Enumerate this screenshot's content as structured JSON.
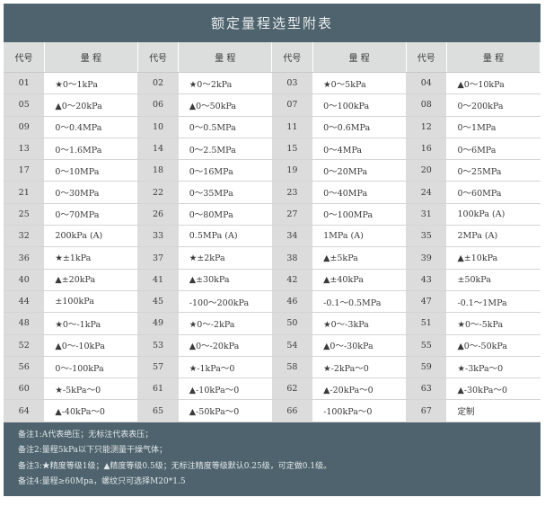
{
  "title": "额定量程选型附表",
  "headers": {
    "code": "代号",
    "range": "量 程"
  },
  "rows": [
    [
      [
        "01",
        "★0～1kPa"
      ],
      [
        "02",
        "★0～2kPa"
      ],
      [
        "03",
        "★0～5kPa"
      ],
      [
        "04",
        "▲0～10kPa"
      ]
    ],
    [
      [
        "05",
        "▲0～20kPa"
      ],
      [
        "06",
        "▲0～50kPa"
      ],
      [
        "07",
        "0～100kPa"
      ],
      [
        "08",
        "0～200kPa"
      ]
    ],
    [
      [
        "09",
        "0～0.4MPa"
      ],
      [
        "10",
        "0～0.5MPa"
      ],
      [
        "11",
        "0～0.6MPa"
      ],
      [
        "12",
        "0～1MPa"
      ]
    ],
    [
      [
        "13",
        "0～1.6MPa"
      ],
      [
        "14",
        "0～2.5MPa"
      ],
      [
        "15",
        "0～4MPa"
      ],
      [
        "16",
        "0～6MPa"
      ]
    ],
    [
      [
        "17",
        "0～10MPa"
      ],
      [
        "18",
        "0～16MPa"
      ],
      [
        "19",
        "0～20MPa"
      ],
      [
        "20",
        "0～25MPa"
      ]
    ],
    [
      [
        "21",
        "0～30MPa"
      ],
      [
        "22",
        "0～35MPa"
      ],
      [
        "23",
        "0～40MPa"
      ],
      [
        "24",
        "0～60MPa"
      ]
    ],
    [
      [
        "25",
        "0～70MPa"
      ],
      [
        "26",
        "0～80MPa"
      ],
      [
        "27",
        "0～100MPa"
      ],
      [
        "31",
        "100kPa (A)"
      ]
    ],
    [
      [
        "32",
        "200kPa (A)"
      ],
      [
        "33",
        "0.5MPa (A)"
      ],
      [
        "34",
        "1MPa (A)"
      ],
      [
        "35",
        "2MPa (A)"
      ]
    ],
    [
      [
        "36",
        "★±1kPa"
      ],
      [
        "37",
        "★±2kPa"
      ],
      [
        "38",
        "▲±5kPa"
      ],
      [
        "39",
        "▲±10kPa"
      ]
    ],
    [
      [
        "40",
        "▲±20kPa"
      ],
      [
        "41",
        "▲±30kPa"
      ],
      [
        "42",
        "▲±40kPa"
      ],
      [
        "43",
        "±50kPa"
      ]
    ],
    [
      [
        "44",
        "±100kPa"
      ],
      [
        "45",
        "-100～200kPa"
      ],
      [
        "46",
        "-0.1～0.5MPa"
      ],
      [
        "47",
        "-0.1～1MPa"
      ]
    ],
    [
      [
        "48",
        "★0～-1kPa"
      ],
      [
        "49",
        "★0～-2kPa"
      ],
      [
        "50",
        "★0～-3kPa"
      ],
      [
        "51",
        "★0～-5kPa"
      ]
    ],
    [
      [
        "52",
        "▲0～-10kPa"
      ],
      [
        "53",
        "▲0～-20kPa"
      ],
      [
        "54",
        "▲0～-30kPa"
      ],
      [
        "55",
        "▲0～-50kPa"
      ]
    ],
    [
      [
        "56",
        "0～-100kPa"
      ],
      [
        "57",
        "★-1kPa～0"
      ],
      [
        "58",
        "★-2kPa～0"
      ],
      [
        "59",
        "★-3kPa～0"
      ]
    ],
    [
      [
        "60",
        "★-5kPa～0"
      ],
      [
        "61",
        "▲-10kPa～0"
      ],
      [
        "62",
        "▲-20kPa～0"
      ],
      [
        "63",
        "▲-30kPa～0"
      ]
    ],
    [
      [
        "64",
        "▲-40kPa～0"
      ],
      [
        "65",
        "▲-50kPa～0"
      ],
      [
        "66",
        "-100kPa～0"
      ],
      [
        "67",
        "定制"
      ]
    ]
  ],
  "notes": [
    "备注1:A代表绝压；无标注代表表压；",
    "备注2:量程5kPa以下只能测量干燥气体；",
    "备注3:★精度等级1级；▲精度等级0.5级；无标注精度等级默认0.25级，可定做0.1级。",
    "备注4:量程≥60Mpa，螺纹只可选择M20*1.5"
  ],
  "colors": {
    "panel": "#4e636d",
    "header": "#dcdedd",
    "code_cell": "#dcdcdc"
  }
}
